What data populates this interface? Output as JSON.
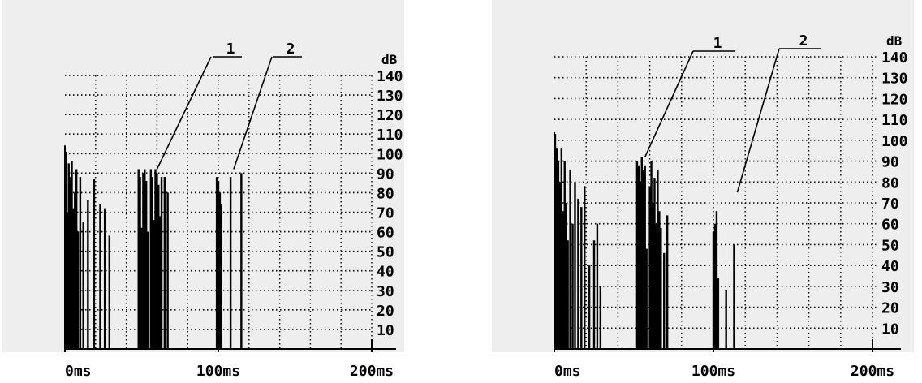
{
  "chart_data": [
    {
      "type": "bar",
      "xlabel": "",
      "ylabel": "dB",
      "xlim": [
        0,
        220
      ],
      "ylim": [
        0,
        145
      ],
      "x_ticks": [
        0,
        100,
        200
      ],
      "x_tick_labels": [
        "0ms",
        "100ms",
        "200ms"
      ],
      "y_ticks": [
        10,
        20,
        30,
        40,
        50,
        60,
        70,
        80,
        90,
        100,
        110,
        120,
        130,
        140
      ],
      "y_tick_labels": [
        "10",
        "20",
        "30",
        "40",
        "50",
        "60",
        "70",
        "80",
        "90",
        "100",
        "110",
        "120",
        "130",
        "140"
      ],
      "grid": true,
      "callouts": [
        {
          "label": "1",
          "target_x": 60,
          "target_y": 92
        },
        {
          "label": "2",
          "target_x": 110,
          "target_y": 92
        }
      ],
      "series": [
        {
          "x": [
            0.5,
            1.5,
            2.5,
            3.5,
            4.5,
            5.5,
            6.5,
            7.5,
            8.5,
            10,
            12,
            15,
            19,
            23,
            26,
            29,
            48,
            49,
            50,
            51,
            52,
            53,
            54,
            56,
            57,
            58,
            59,
            60,
            61,
            62,
            63,
            65,
            67,
            99,
            100,
            101,
            102,
            108,
            115
          ],
          "values": [
            101,
            70,
            95,
            88,
            96,
            72,
            80,
            92,
            60,
            88,
            65,
            76,
            87,
            74,
            72,
            58,
            92,
            88,
            62,
            90,
            92,
            86,
            60,
            92,
            88,
            66,
            92,
            90,
            84,
            68,
            88,
            88,
            80,
            88,
            86,
            80,
            74,
            88,
            90
          ]
        }
      ]
    },
    {
      "type": "bar",
      "xlabel": "",
      "ylabel": "dB",
      "xlim": [
        0,
        220
      ],
      "ylim": [
        0,
        145
      ],
      "x_ticks": [
        0,
        100,
        200
      ],
      "x_tick_labels": [
        "0ms",
        "100ms",
        "200ms"
      ],
      "y_ticks": [
        10,
        20,
        30,
        40,
        50,
        60,
        70,
        80,
        90,
        100,
        110,
        120,
        130,
        140
      ],
      "y_tick_labels": [
        "10",
        "20",
        "30",
        "40",
        "50",
        "60",
        "70",
        "80",
        "90",
        "100",
        "110",
        "120",
        "130",
        "140"
      ],
      "grid": true,
      "callouts": [
        {
          "label": "1",
          "target_x": 57,
          "target_y": 92
        },
        {
          "label": "2",
          "target_x": 115,
          "target_y": 75
        }
      ],
      "series": [
        {
          "x": [
            0.5,
            1.5,
            2.5,
            3.5,
            4.5,
            5.5,
            6.5,
            7.5,
            8.5,
            10,
            11.5,
            13,
            15,
            17,
            19,
            22,
            25,
            27,
            29,
            52,
            53,
            54,
            55,
            56,
            57,
            58,
            60,
            61,
            62,
            63,
            64,
            65,
            66,
            67,
            69,
            71,
            100,
            101,
            102,
            103,
            108,
            113
          ],
          "values": [
            103,
            96,
            90,
            80,
            96,
            66,
            90,
            70,
            52,
            86,
            60,
            80,
            72,
            68,
            78,
            40,
            52,
            60,
            30,
            90,
            88,
            80,
            92,
            86,
            88,
            48,
            78,
            90,
            70,
            82,
            60,
            86,
            66,
            58,
            46,
            64,
            56,
            60,
            66,
            34,
            28,
            50
          ]
        }
      ]
    }
  ]
}
